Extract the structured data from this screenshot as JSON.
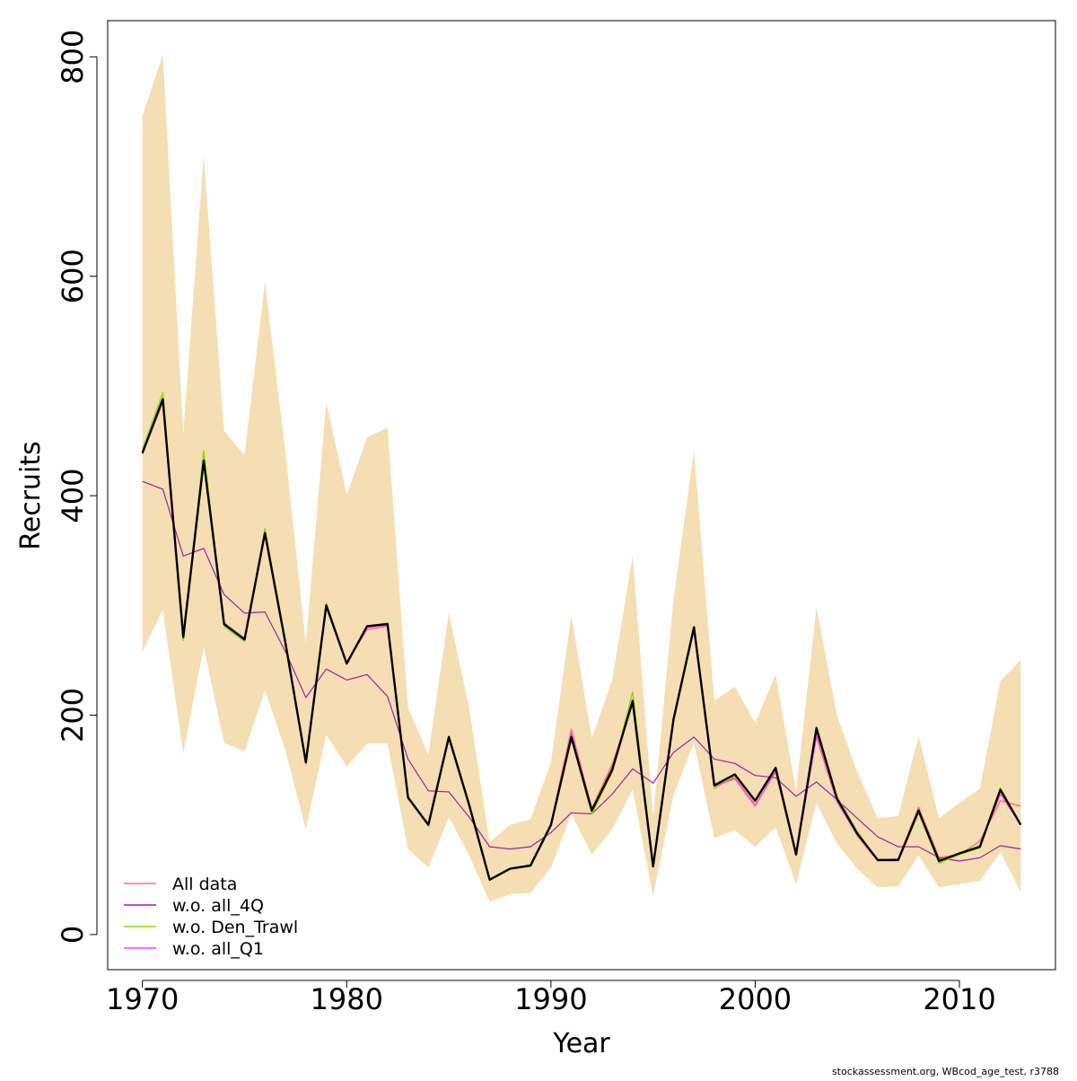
{
  "chart_data": {
    "type": "line",
    "xlabel": "Year",
    "ylabel": "Recruits",
    "xlim": [
      1968.3,
      2014.7
    ],
    "ylim": [
      -32,
      833
    ],
    "x_ticks": [
      "1970",
      "1980",
      "1990",
      "2000",
      "2010"
    ],
    "y_ticks": [
      "0",
      "200",
      "400",
      "600",
      "800"
    ],
    "grid": false,
    "legend_position": "bottom-left",
    "footer": "stockassessment.org, WBcod_age_test, r3788",
    "x": [
      1970,
      1971,
      1972,
      1973,
      1974,
      1975,
      1976,
      1977,
      1978,
      1979,
      1980,
      1981,
      1982,
      1983,
      1984,
      1985,
      1986,
      1987,
      1988,
      1989,
      1990,
      1991,
      1992,
      1993,
      1994,
      1995,
      1996,
      1997,
      1998,
      1999,
      2000,
      2001,
      2002,
      2003,
      2004,
      2005,
      2006,
      2007,
      2008,
      2009,
      2010,
      2011,
      2012,
      2013
    ],
    "confidence_band": {
      "color": "#f5deb3",
      "lower": [
        258,
        296,
        165,
        262,
        175,
        167,
        223,
        168,
        96,
        182,
        153,
        174,
        174,
        78,
        61,
        107,
        72,
        30,
        37,
        38,
        61,
        110,
        73,
        96,
        132,
        35,
        127,
        175,
        88,
        95,
        80,
        98,
        46,
        120,
        83,
        60,
        43,
        44,
        72,
        43,
        46,
        49,
        75,
        39
      ],
      "upper": [
        746,
        802,
        457,
        710,
        459,
        437,
        595,
        440,
        265,
        485,
        401,
        453,
        462,
        207,
        164,
        293,
        206,
        84,
        100,
        105,
        157,
        291,
        179,
        232,
        345,
        107,
        305,
        441,
        213,
        226,
        193,
        237,
        131,
        298,
        200,
        148,
        106,
        108,
        181,
        106,
        120,
        133,
        231,
        250
      ]
    },
    "series": [
      {
        "name": "All data",
        "color": "#f8766d",
        "width": 1.5,
        "values": [
          438,
          485,
          270,
          430,
          284,
          270,
          365,
          265,
          157,
          299,
          248,
          280,
          282,
          125,
          100,
          180,
          118,
          50,
          60,
          63,
          101,
          187,
          115,
          155,
          210,
          62,
          195,
          278,
          136,
          143,
          118,
          148,
          73,
          183,
          122,
          90,
          67,
          69,
          116,
          70,
          73,
          85,
          122,
          117
        ]
      },
      {
        "name": "w.o. all_4Q",
        "color": "#9922aa",
        "width": 1.2,
        "values": [
          413,
          406,
          345,
          352,
          310,
          293,
          294,
          258,
          216,
          242,
          232,
          237,
          217,
          160,
          131,
          130,
          107,
          80,
          78,
          80,
          93,
          111,
          110,
          128,
          151,
          138,
          166,
          180,
          160,
          156,
          145,
          143,
          126,
          139,
          123,
          106,
          89,
          80,
          80,
          70,
          67,
          70,
          81,
          78
        ]
      },
      {
        "name": "w.o. Den_Trawl",
        "color": "#8ee000",
        "width": 1.5,
        "values": [
          442,
          494,
          268,
          441,
          281,
          267,
          370,
          268,
          155,
          302,
          247,
          281,
          284,
          124,
          99,
          181,
          116,
          50,
          60,
          62,
          99,
          179,
          110,
          148,
          221,
          63,
          195,
          281,
          133,
          145,
          121,
          151,
          73,
          190,
          126,
          94,
          67,
          67,
          111,
          65,
          73,
          79,
          134,
          100
        ]
      },
      {
        "name": "w.o. all_Q1",
        "color": "#ff40ff",
        "width": 1.2,
        "values": [
          438,
          486,
          272,
          432,
          282,
          270,
          366,
          265,
          157,
          298,
          248,
          278,
          281,
          124,
          100,
          178,
          117,
          50,
          60,
          63,
          100,
          184,
          114,
          152,
          212,
          62,
          196,
          279,
          135,
          142,
          117,
          150,
          72,
          180,
          121,
          91,
          68,
          69,
          114,
          68,
          74,
          81,
          128,
          100
        ]
      },
      {
        "name": "",
        "color": "#000000",
        "width": 2.4,
        "values": [
          439,
          488,
          271,
          432,
          283,
          269,
          366,
          266,
          157,
          300,
          247,
          281,
          283,
          125,
          100,
          180,
          118,
          50,
          60,
          63,
          100,
          180,
          113,
          150,
          213,
          62,
          196,
          280,
          136,
          146,
          122,
          152,
          73,
          188,
          124,
          92,
          68,
          68,
          113,
          67,
          74,
          80,
          132,
          100
        ]
      }
    ]
  }
}
